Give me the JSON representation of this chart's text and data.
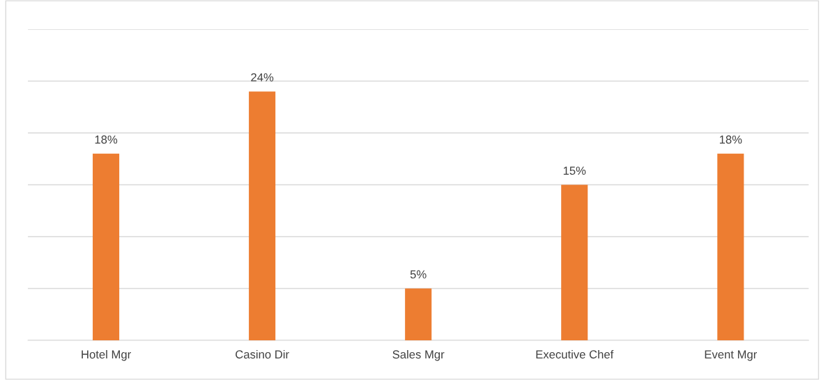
{
  "chart_data": {
    "type": "bar",
    "categories": [
      "Hotel Mgr",
      "Casino Dir",
      "Sales Mgr",
      "Executive Chef",
      "Event Mgr"
    ],
    "values": [
      18,
      24,
      5,
      15,
      18
    ],
    "value_labels": [
      "18%",
      "24%",
      "5%",
      "15%",
      "18%"
    ],
    "color": "#ed7d31",
    "ylim": [
      0,
      30
    ],
    "yticks": [
      {
        "value": 0,
        "label": null
      },
      {
        "value": 5,
        "label": null
      },
      {
        "value": 10,
        "label": null
      },
      {
        "value": 15,
        "label": null
      },
      {
        "value": 20,
        "label": null
      },
      {
        "value": 25,
        "label": null
      },
      {
        "value": 30,
        "label": null
      }
    ],
    "grid": "y",
    "tick_labels": "x"
  }
}
